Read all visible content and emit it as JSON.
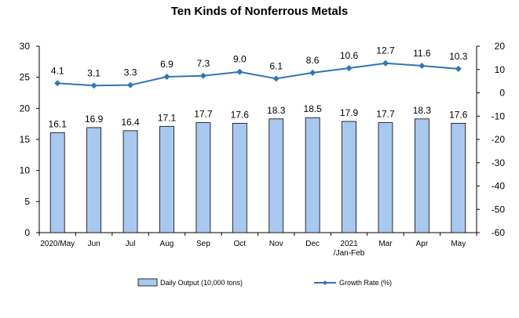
{
  "chart_data": {
    "type": "bar",
    "title": "Ten Kinds of Nonferrous Metals",
    "categories": [
      "2020/May",
      "Jun",
      "Jul",
      "Aug",
      "Sep",
      "Oct",
      "Nov",
      "Dec",
      "2021\n/Jan-Feb",
      "Mar",
      "Apr",
      "May"
    ],
    "series": [
      {
        "name": "Daily Output (10,000 tons)",
        "type": "bar",
        "axis": "left",
        "color": "#a9c8f0",
        "values": [
          16.1,
          16.9,
          16.4,
          17.1,
          17.7,
          17.6,
          18.3,
          18.5,
          17.9,
          17.7,
          18.3,
          17.6
        ]
      },
      {
        "name": "Growth Rate (%)",
        "type": "line",
        "axis": "right",
        "color": "#2e75b6",
        "values": [
          4.1,
          3.1,
          3.3,
          6.9,
          7.3,
          9.0,
          6.1,
          8.6,
          10.6,
          12.7,
          11.6,
          10.3
        ]
      }
    ],
    "y_left": {
      "min": 0,
      "max": 30,
      "step": 5
    },
    "y_right": {
      "min": -60,
      "max": 20,
      "step": 10
    },
    "legend": {
      "position": "bottom"
    },
    "grid": false
  }
}
